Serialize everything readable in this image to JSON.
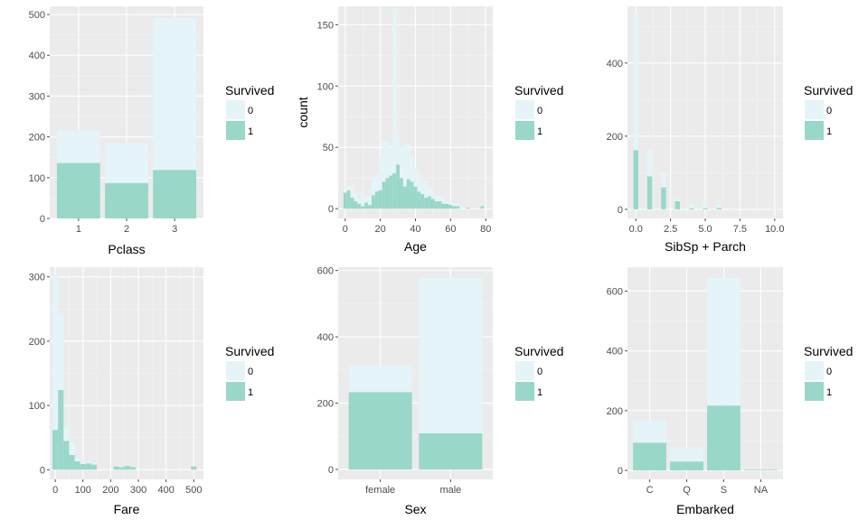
{
  "colors": {
    "panel": "#ebebeb",
    "grid_major": "#ffffff",
    "grid_minor": "#f4f4f4",
    "fill_0": "#e5f4f9",
    "fill_1": "#99d8c9"
  },
  "legend": {
    "title": "Survived",
    "labels": [
      "0",
      "1"
    ]
  },
  "chart_data": [
    {
      "type": "bar",
      "xlabel": "Pclass",
      "ylabel": "",
      "categories": [
        "1",
        "2",
        "3"
      ],
      "series": [
        {
          "name": "0",
          "values": [
            80,
            97,
            372
          ]
        },
        {
          "name": "1",
          "values": [
            136,
            87,
            119
          ]
        }
      ],
      "stacked": true,
      "ylim": [
        0,
        520
      ],
      "yticks": [
        0,
        100,
        200,
        300,
        400,
        500
      ]
    },
    {
      "type": "histogram",
      "xlabel": "Age",
      "ylabel": "count",
      "xlim": [
        -4,
        84
      ],
      "binwidth": 2,
      "xticks": [
        0,
        20,
        40,
        60,
        80
      ],
      "ylim": [
        -8,
        165
      ],
      "yticks": [
        0,
        50,
        100,
        150
      ],
      "bins": [
        0,
        2,
        4,
        6,
        8,
        10,
        12,
        14,
        16,
        18,
        20,
        22,
        24,
        26,
        28,
        30,
        32,
        34,
        36,
        38,
        40,
        42,
        44,
        46,
        48,
        50,
        52,
        54,
        56,
        58,
        60,
        62,
        64,
        66,
        70,
        74,
        78
      ],
      "series": [
        {
          "name": "0",
          "values": [
            1,
            4,
            10,
            8,
            4,
            12,
            4,
            8,
            14,
            14,
            28,
            33,
            29,
            22,
            134,
            24,
            26,
            35,
            28,
            21,
            16,
            15,
            10,
            14,
            8,
            6,
            5,
            5,
            4,
            3,
            3,
            2,
            2,
            2,
            1,
            1,
            0
          ]
        },
        {
          "name": "1",
          "values": [
            13,
            15,
            9,
            6,
            4,
            2,
            5,
            3,
            11,
            14,
            15,
            22,
            25,
            27,
            29,
            36,
            25,
            18,
            24,
            22,
            18,
            14,
            12,
            9,
            10,
            8,
            6,
            6,
            4,
            4,
            3,
            2,
            2,
            0,
            1,
            0,
            2
          ]
        }
      ]
    },
    {
      "type": "histogram",
      "xlabel": "SibSp + Parch",
      "ylabel": "",
      "xlim": [
        -0.6,
        10.6
      ],
      "binwidth": 0.35,
      "xticks": [
        0,
        2.5,
        5,
        7.5,
        10
      ],
      "xtick_labels": [
        "0.0",
        "2.5",
        "5.0",
        "7.5",
        "10.0"
      ],
      "ylim": [
        -25,
        555
      ],
      "yticks": [
        0,
        200,
        400
      ],
      "bins": [
        0,
        1,
        2,
        3,
        4,
        5,
        6,
        7,
        10
      ],
      "series": [
        {
          "name": "0",
          "values": [
            375,
            72,
            43,
            7,
            12,
            19,
            8,
            6,
            7
          ]
        },
        {
          "name": "1",
          "values": [
            162,
            90,
            60,
            22,
            3,
            3,
            4,
            0,
            0
          ]
        }
      ]
    },
    {
      "type": "histogram",
      "xlabel": "Fare",
      "ylabel": "",
      "xlim": [
        -20,
        535
      ],
      "binwidth": 20,
      "xticks": [
        0,
        100,
        200,
        300,
        400,
        500
      ],
      "ylim": [
        -15,
        315
      ],
      "yticks": [
        0,
        100,
        200,
        300
      ],
      "bins": [
        0,
        20,
        40,
        60,
        80,
        100,
        120,
        140,
        220,
        240,
        260,
        280,
        500
      ],
      "series": [
        {
          "name": "0",
          "values": [
            240,
            120,
            22,
            20,
            6,
            5,
            4,
            2,
            0,
            2,
            0,
            0,
            0
          ]
        },
        {
          "name": "1",
          "values": [
            62,
            124,
            45,
            23,
            13,
            9,
            10,
            8,
            5,
            4,
            6,
            4,
            5
          ]
        }
      ]
    },
    {
      "type": "bar",
      "xlabel": "Sex",
      "ylabel": "",
      "categories": [
        "female",
        "male"
      ],
      "series": [
        {
          "name": "0",
          "values": [
            81,
            468
          ]
        },
        {
          "name": "1",
          "values": [
            233,
            109
          ]
        }
      ],
      "stacked": true,
      "ylim": [
        -30,
        610
      ],
      "yticks": [
        0,
        200,
        400,
        600
      ]
    },
    {
      "type": "bar",
      "xlabel": "Embarked",
      "ylabel": "",
      "categories": [
        "C",
        "Q",
        "S",
        "NA"
      ],
      "series": [
        {
          "name": "0",
          "values": [
            75,
            47,
            427,
            0
          ]
        },
        {
          "name": "1",
          "values": [
            93,
            30,
            217,
            2
          ]
        }
      ],
      "stacked": true,
      "ylim": [
        -30,
        680
      ],
      "yticks": [
        0,
        200,
        400,
        600
      ]
    }
  ]
}
